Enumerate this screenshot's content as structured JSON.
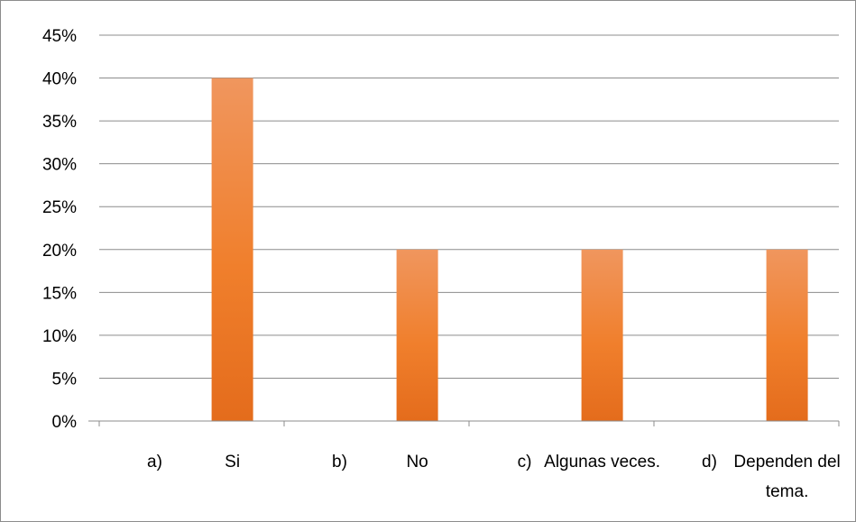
{
  "chart_data": {
    "type": "bar",
    "title": "",
    "xlabel": "",
    "ylabel": "",
    "categories": [
      {
        "prefix": "a)",
        "text": [
          "Si"
        ]
      },
      {
        "prefix": "b)",
        "text": [
          "No"
        ]
      },
      {
        "prefix": "c)",
        "text": [
          "Algunas veces."
        ]
      },
      {
        "prefix": "d)",
        "text": [
          "Dependen del",
          "tema."
        ]
      }
    ],
    "values": [
      40,
      20,
      20,
      20
    ],
    "value_unit": "%",
    "ylim": [
      0,
      45
    ],
    "yticks": [
      "0%",
      "5%",
      "10%",
      "15%",
      "20%",
      "25%",
      "30%",
      "35%",
      "40%",
      "45%"
    ],
    "grid": true,
    "legend": "none",
    "colors": {
      "bar_top": "#f0965e",
      "bar_mid": "#f07f2c",
      "bar_bottom": "#e46c1c",
      "grid": "#8c8c8c",
      "axis": "#8c8c8c"
    }
  }
}
